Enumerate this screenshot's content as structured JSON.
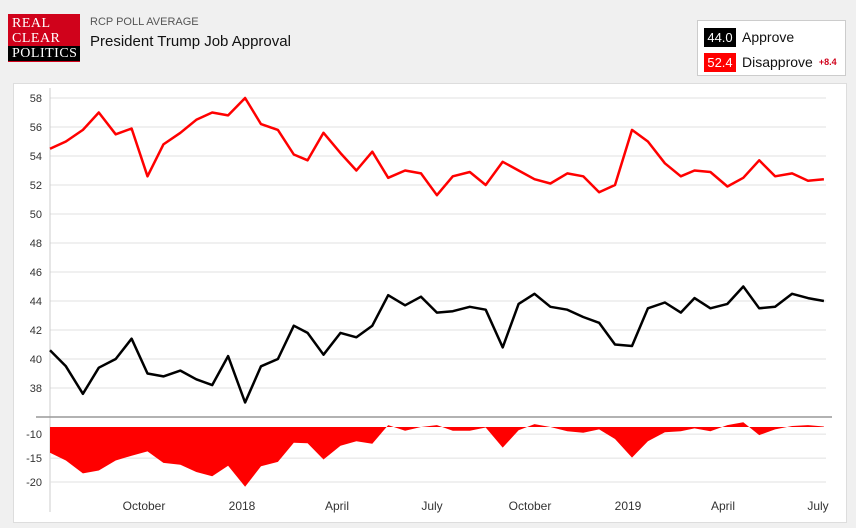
{
  "header": {
    "logo_lines": [
      "REAL",
      "CLEAR",
      "POLITICS"
    ],
    "kicker": "RCP POLL AVERAGE",
    "title": "President Trump Job Approval"
  },
  "legend": {
    "approve_value": "44.0",
    "approve_label": "Approve",
    "disapprove_value": "52.4",
    "disapprove_label": "Disapprove",
    "spread": "+8.4"
  },
  "colors": {
    "approve": "#000000",
    "disapprove": "#ff0000",
    "logo": "#d0021b"
  },
  "chart_data": [
    {
      "type": "line",
      "title": "President Trump Job Approval",
      "ylim": [
        36,
        58.5
      ],
      "y_ticks": [
        38,
        40,
        42,
        44,
        46,
        48,
        50,
        52,
        54,
        56,
        58
      ],
      "x_labels": [
        "October",
        "2018",
        "April",
        "July",
        "October",
        "2019",
        "April",
        "July"
      ],
      "x_range": [
        "2017-07-10",
        "2019-07-12"
      ],
      "grid": true,
      "series": [
        {
          "name": "Disapprove",
          "color": "#ff0000",
          "x": [
            "2017-07-10",
            "2017-07-25",
            "2017-08-10",
            "2017-08-25",
            "2017-09-10",
            "2017-09-25",
            "2017-10-10",
            "2017-10-25",
            "2017-11-10",
            "2017-11-25",
            "2017-12-10",
            "2017-12-25",
            "2018-01-10",
            "2018-01-25",
            "2018-02-10",
            "2018-02-25",
            "2018-03-10",
            "2018-03-25",
            "2018-04-10",
            "2018-04-25",
            "2018-05-10",
            "2018-05-25",
            "2018-06-10",
            "2018-06-25",
            "2018-07-10",
            "2018-07-25",
            "2018-08-10",
            "2018-08-25",
            "2018-09-10",
            "2018-09-25",
            "2018-10-10",
            "2018-10-25",
            "2018-11-10",
            "2018-11-25",
            "2018-12-10",
            "2018-12-25",
            "2019-01-10",
            "2019-01-25",
            "2019-02-10",
            "2019-02-25",
            "2019-03-10",
            "2019-03-25",
            "2019-04-10",
            "2019-04-25",
            "2019-05-10",
            "2019-05-25",
            "2019-06-10",
            "2019-06-25",
            "2019-07-10"
          ],
          "values": [
            54.5,
            55.0,
            55.8,
            57.0,
            55.5,
            55.9,
            52.6,
            54.8,
            55.6,
            56.5,
            57.0,
            56.8,
            58.0,
            56.2,
            55.8,
            54.1,
            53.7,
            55.6,
            54.2,
            53.0,
            54.3,
            52.5,
            53.0,
            52.8,
            51.3,
            52.6,
            52.9,
            52.0,
            53.6,
            53.0,
            52.4,
            52.1,
            52.8,
            52.6,
            51.5,
            52.0,
            55.8,
            55.0,
            53.5,
            52.6,
            53.0,
            52.9,
            51.9,
            52.5,
            53.7,
            52.6,
            52.8,
            52.3,
            52.4
          ]
        },
        {
          "name": "Approve",
          "color": "#000000",
          "x": [
            "2017-07-10",
            "2017-07-25",
            "2017-08-10",
            "2017-08-25",
            "2017-09-10",
            "2017-09-25",
            "2017-10-10",
            "2017-10-25",
            "2017-11-10",
            "2017-11-25",
            "2017-12-10",
            "2017-12-25",
            "2018-01-10",
            "2018-01-25",
            "2018-02-10",
            "2018-02-25",
            "2018-03-10",
            "2018-03-25",
            "2018-04-10",
            "2018-04-25",
            "2018-05-10",
            "2018-05-25",
            "2018-06-10",
            "2018-06-25",
            "2018-07-10",
            "2018-07-25",
            "2018-08-10",
            "2018-08-25",
            "2018-09-10",
            "2018-09-25",
            "2018-10-10",
            "2018-10-25",
            "2018-11-10",
            "2018-11-25",
            "2018-12-10",
            "2018-12-25",
            "2019-01-10",
            "2019-01-25",
            "2019-02-10",
            "2019-02-25",
            "2019-03-10",
            "2019-03-25",
            "2019-04-10",
            "2019-04-25",
            "2019-05-10",
            "2019-05-25",
            "2019-06-10",
            "2019-06-25",
            "2019-07-10"
          ],
          "values": [
            40.6,
            39.5,
            37.6,
            39.4,
            40.0,
            41.4,
            39.0,
            38.8,
            39.2,
            38.6,
            38.2,
            40.2,
            37.0,
            39.5,
            40.0,
            42.3,
            41.8,
            40.3,
            41.8,
            41.5,
            42.3,
            44.4,
            43.7,
            44.3,
            43.2,
            43.3,
            43.6,
            43.4,
            40.8,
            43.8,
            44.5,
            43.6,
            43.4,
            42.9,
            42.5,
            41.0,
            40.9,
            43.5,
            43.9,
            43.2,
            44.2,
            43.5,
            43.8,
            45.0,
            43.5,
            43.6,
            44.5,
            44.2,
            44.0
          ]
        }
      ]
    },
    {
      "type": "area",
      "title": "",
      "ylim": [
        -20.5,
        -8.5
      ],
      "y_ticks": [
        -10,
        -15,
        -20
      ],
      "color": "#ff0000",
      "x": [
        "2017-07-10",
        "2017-07-25",
        "2017-08-10",
        "2017-08-25",
        "2017-09-10",
        "2017-09-25",
        "2017-10-10",
        "2017-10-25",
        "2017-11-10",
        "2017-11-25",
        "2017-12-10",
        "2017-12-25",
        "2018-01-10",
        "2018-01-25",
        "2018-02-10",
        "2018-02-25",
        "2018-03-10",
        "2018-03-25",
        "2018-04-10",
        "2018-04-25",
        "2018-05-10",
        "2018-05-25",
        "2018-06-10",
        "2018-06-25",
        "2018-07-10",
        "2018-07-25",
        "2018-08-10",
        "2018-08-25",
        "2018-09-10",
        "2018-09-25",
        "2018-10-10",
        "2018-10-25",
        "2018-11-10",
        "2018-11-25",
        "2018-12-10",
        "2018-12-25",
        "2019-01-10",
        "2019-01-25",
        "2019-02-10",
        "2019-02-25",
        "2019-03-10",
        "2019-03-25",
        "2019-04-10",
        "2019-04-25",
        "2019-05-10",
        "2019-05-25",
        "2019-06-10",
        "2019-06-25",
        "2019-07-10"
      ],
      "values": [
        -13.9,
        -15.5,
        -18.2,
        -17.6,
        -15.5,
        -14.5,
        -13.6,
        -16.0,
        -16.4,
        -17.9,
        -18.8,
        -16.6,
        -21.0,
        -16.7,
        -15.8,
        -11.8,
        -11.9,
        -15.3,
        -12.4,
        -11.5,
        -12.0,
        -8.1,
        -9.3,
        -8.5,
        -8.1,
        -9.3,
        -9.3,
        -8.6,
        -12.8,
        -9.2,
        -7.9,
        -8.5,
        -9.4,
        -9.7,
        -9.0,
        -11.0,
        -14.9,
        -11.5,
        -9.6,
        -9.4,
        -8.8,
        -9.4,
        -8.1,
        -7.5,
        -10.2,
        -9.0,
        -8.3,
        -8.1,
        -8.4
      ]
    }
  ]
}
